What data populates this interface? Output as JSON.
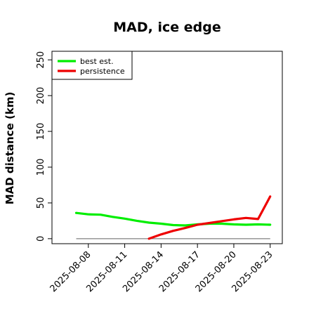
{
  "chart_data": {
    "type": "line",
    "title": "MAD, ice edge",
    "xlabel": "",
    "ylabel": "MAD distance (km)",
    "x_tick_labels": [
      "2025-08-08",
      "2025-08-11",
      "2025-08-14",
      "2025-08-17",
      "2025-08-20",
      "2025-08-23"
    ],
    "xlim": [
      "2025-08-05",
      "2025-08-24"
    ],
    "ylim": [
      -7,
      262
    ],
    "y_ticks": [
      0,
      50,
      100,
      150,
      200,
      250
    ],
    "legend": {
      "position": "top-left"
    },
    "grid": false,
    "reference_line": {
      "y": 0,
      "x_range": [
        "2025-08-07",
        "2025-08-23"
      ],
      "color": "#808080"
    },
    "series": [
      {
        "name": "best est.",
        "color": "#00ee00",
        "points": [
          [
            "2025-08-07",
            36
          ],
          [
            "2025-08-08",
            34
          ],
          [
            "2025-08-09",
            33.5
          ],
          [
            "2025-08-10",
            30.5
          ],
          [
            "2025-08-11",
            28
          ],
          [
            "2025-08-12",
            25
          ],
          [
            "2025-08-13",
            22.5
          ],
          [
            "2025-08-14",
            21
          ],
          [
            "2025-08-15",
            19
          ],
          [
            "2025-08-16",
            18.5
          ],
          [
            "2025-08-17",
            20
          ],
          [
            "2025-08-18",
            21
          ],
          [
            "2025-08-19",
            21
          ],
          [
            "2025-08-20",
            20
          ],
          [
            "2025-08-21",
            19.5
          ],
          [
            "2025-08-22",
            20
          ],
          [
            "2025-08-23",
            19.5
          ]
        ]
      },
      {
        "name": "persistence",
        "color": "#ee0000",
        "points": [
          [
            "2025-08-13",
            0
          ],
          [
            "2025-08-14",
            6
          ],
          [
            "2025-08-15",
            11
          ],
          [
            "2025-08-16",
            15
          ],
          [
            "2025-08-17",
            19.5
          ],
          [
            "2025-08-18",
            22
          ],
          [
            "2025-08-19",
            24.5
          ],
          [
            "2025-08-20",
            27
          ],
          [
            "2025-08-21",
            29
          ],
          [
            "2025-08-22",
            27.5
          ],
          [
            "2025-08-23",
            59
          ]
        ]
      }
    ]
  }
}
